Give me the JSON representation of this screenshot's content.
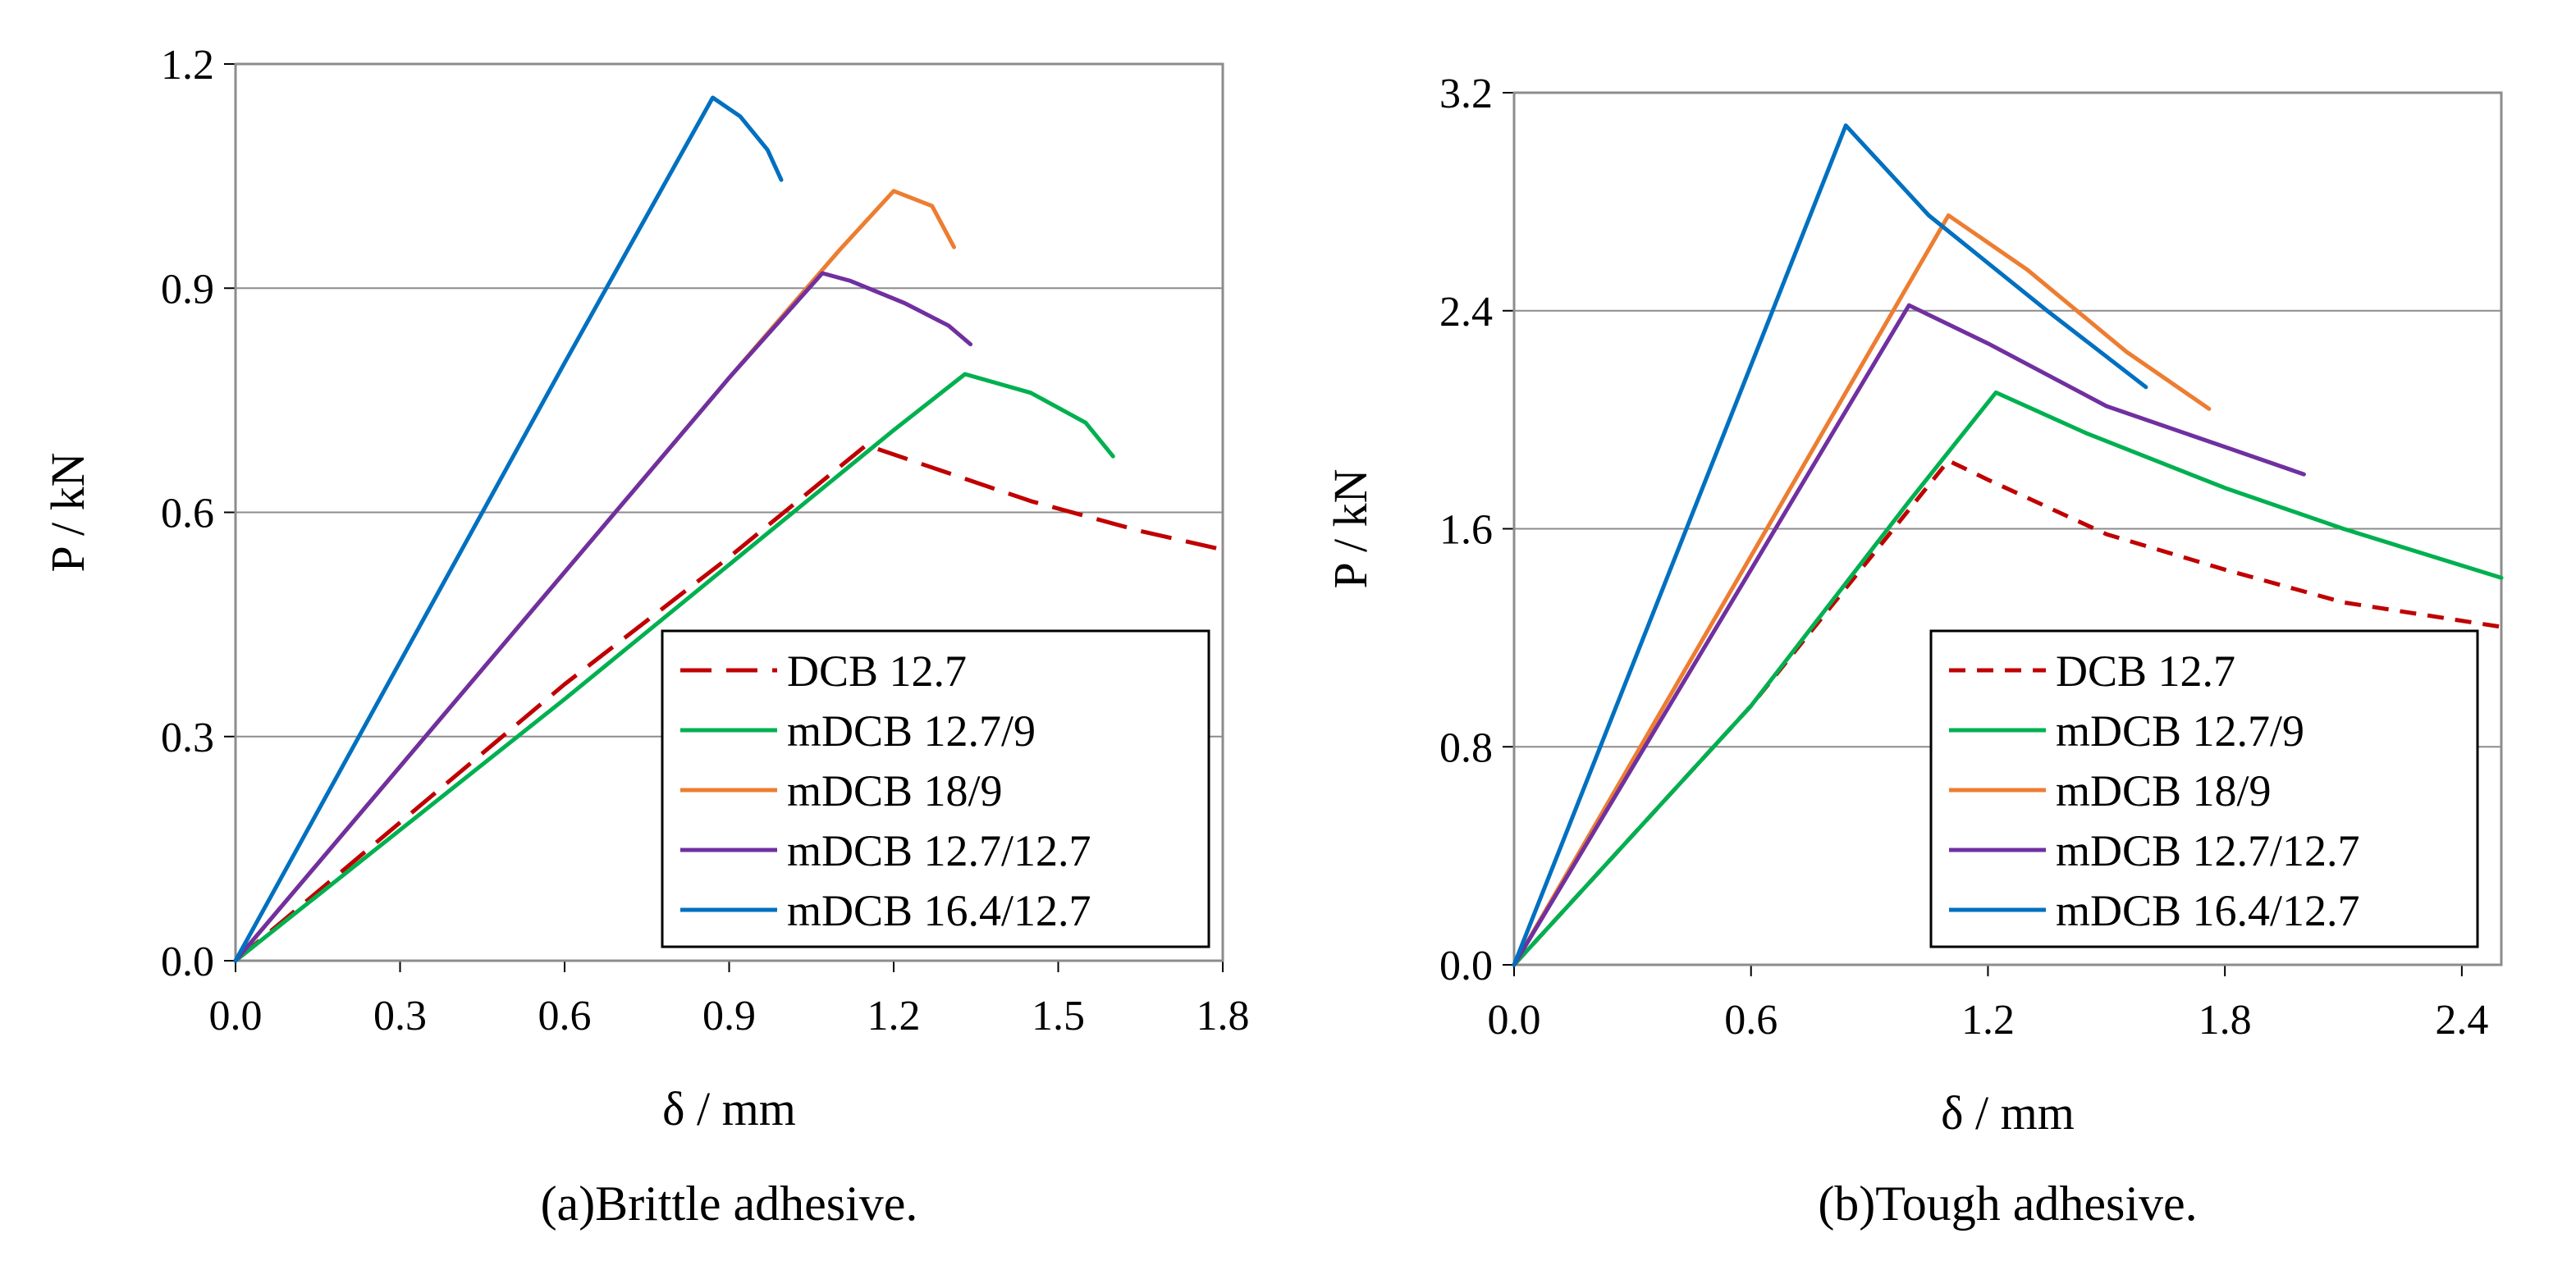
{
  "chart_data": [
    {
      "type": "line",
      "panel_id": "a",
      "caption_letter": "(a)",
      "caption_text": "Brittle adhesive.",
      "xlabel": "δ / mm",
      "ylabel": "P / kN",
      "xlim": [
        0,
        1.8
      ],
      "ylim": [
        0,
        1.2
      ],
      "xticks": [
        "0.0",
        "0.3",
        "0.6",
        "0.9",
        "1.2",
        "1.5",
        "1.8"
      ],
      "yticks": [
        "0.0",
        "0.3",
        "0.6",
        "0.9",
        "1.2"
      ],
      "grid": "horizontal",
      "legend_position": "bottom-right",
      "series": [
        {
          "name": "DCB 12.7",
          "color": "#C00000",
          "style": "long-dash",
          "x": [
            0,
            0.3,
            0.6,
            0.9,
            1.15,
            1.25,
            1.45,
            1.65,
            1.8
          ],
          "y": [
            0,
            0.185,
            0.37,
            0.54,
            0.69,
            0.665,
            0.615,
            0.575,
            0.55
          ]
        },
        {
          "name": "mDCB 12.7/9",
          "color": "#00B050",
          "style": "solid",
          "x": [
            0,
            0.3,
            0.6,
            0.9,
            1.2,
            1.33,
            1.45,
            1.55,
            1.6
          ],
          "y": [
            0,
            0.175,
            0.35,
            0.53,
            0.71,
            0.785,
            0.76,
            0.72,
            0.675
          ]
        },
        {
          "name": "mDCB 18/9",
          "color": "#ED7D31",
          "style": "solid",
          "x": [
            0,
            0.3,
            0.6,
            0.9,
            1.1,
            1.2,
            1.27,
            1.31
          ],
          "y": [
            0,
            0.26,
            0.52,
            0.78,
            0.95,
            1.03,
            1.01,
            0.955
          ]
        },
        {
          "name": "mDCB 12.7/12.7",
          "color": "#7030A0",
          "style": "solid",
          "x": [
            0,
            0.3,
            0.6,
            0.9,
            1.07,
            1.12,
            1.22,
            1.3,
            1.34
          ],
          "y": [
            0,
            0.26,
            0.52,
            0.78,
            0.92,
            0.91,
            0.88,
            0.85,
            0.825
          ]
        },
        {
          "name": "mDCB 16.4/12.7",
          "color": "#0070C0",
          "style": "solid",
          "x": [
            0,
            0.3,
            0.6,
            0.87,
            0.92,
            0.97,
            0.995
          ],
          "y": [
            0,
            0.4,
            0.8,
            1.155,
            1.13,
            1.085,
            1.045
          ]
        }
      ]
    },
    {
      "type": "line",
      "panel_id": "b",
      "caption_letter": "(b)",
      "caption_text": "Tough adhesive.",
      "xlabel": "δ / mm",
      "ylabel": "P / kN",
      "xlim": [
        0,
        2.5
      ],
      "ylim": [
        0,
        3.2
      ],
      "xticks": [
        "0.0",
        "0.6",
        "1.2",
        "1.8",
        "2.4"
      ],
      "yticks": [
        "0.0",
        "0.8",
        "1.6",
        "2.4",
        "3.2"
      ],
      "grid": "horizontal",
      "legend_position": "bottom-right",
      "series": [
        {
          "name": "DCB 12.7",
          "color": "#C00000",
          "style": "short-dash",
          "x": [
            0,
            0.6,
            1.1,
            1.2,
            1.5,
            1.8,
            2.1,
            2.5
          ],
          "y": [
            0,
            0.95,
            1.85,
            1.78,
            1.58,
            1.45,
            1.33,
            1.24
          ]
        },
        {
          "name": "mDCB 12.7/9",
          "color": "#00B050",
          "style": "solid",
          "x": [
            0,
            0.6,
            1.0,
            1.22,
            1.45,
            1.8,
            2.1,
            2.5
          ],
          "y": [
            0,
            0.95,
            1.7,
            2.1,
            1.95,
            1.75,
            1.6,
            1.42
          ]
        },
        {
          "name": "mDCB 18/9",
          "color": "#ED7D31",
          "style": "solid",
          "x": [
            0,
            0.6,
            0.9,
            1.1,
            1.3,
            1.55,
            1.76
          ],
          "y": [
            0,
            1.5,
            2.25,
            2.75,
            2.55,
            2.25,
            2.04
          ]
        },
        {
          "name": "mDCB 12.7/12.7",
          "color": "#7030A0",
          "style": "solid",
          "x": [
            0,
            0.6,
            1.0,
            1.2,
            1.5,
            1.8,
            2.0
          ],
          "y": [
            0,
            1.45,
            2.42,
            2.28,
            2.05,
            1.9,
            1.8
          ]
        },
        {
          "name": "mDCB 16.4/12.7",
          "color": "#0070C0",
          "style": "solid",
          "x": [
            0,
            0.3,
            0.6,
            0.84,
            1.05,
            1.35,
            1.6
          ],
          "y": [
            0,
            1.1,
            2.2,
            3.08,
            2.75,
            2.4,
            2.12
          ]
        }
      ]
    }
  ]
}
